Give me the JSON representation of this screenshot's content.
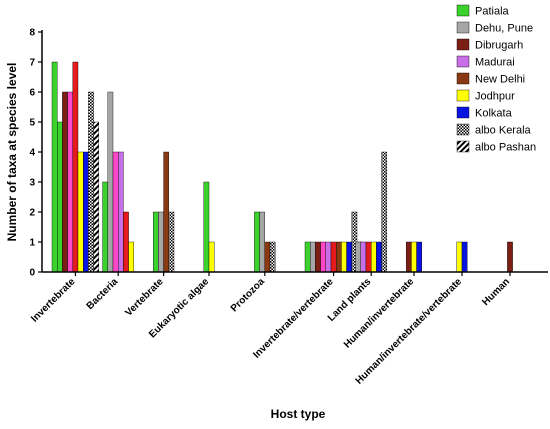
{
  "chart_data": {
    "type": "bar",
    "xlabel": "Host type",
    "ylabel": "Number of taxa at species level",
    "ylim": [
      0,
      8
    ],
    "yticks": [
      0,
      1,
      2,
      3,
      4,
      5,
      6,
      7,
      8
    ],
    "legend_position": "top-right",
    "categories": [
      "Invertebrate",
      "Bacteria",
      "Vertebrate",
      "Eukaryotic algae",
      "Protozoa",
      "Invertebrate/vertebrate",
      "Land plants",
      "Human/invertebrate",
      "Human/invertebrate/vertebrate",
      "Human"
    ],
    "series": [
      {
        "name": "Patiala",
        "color": "#3cd22d",
        "pattern": "solid",
        "values": [
          7,
          3,
          2,
          3,
          2,
          1,
          0,
          0,
          0,
          0
        ]
      },
      {
        "name": "",
        "color": "#3cd22d",
        "pattern": "solid",
        "values": [
          5,
          0,
          0,
          0,
          0,
          0,
          0,
          0,
          0,
          0
        ]
      },
      {
        "name": "Dehu, Pune",
        "color": "#a6a6a6",
        "pattern": "solid",
        "values": [
          0,
          6,
          2,
          0,
          2,
          1,
          1,
          0,
          0,
          0
        ]
      },
      {
        "name": "Dibrugarh",
        "color": "#7b1f14",
        "pattern": "solid",
        "values": [
          6,
          0,
          0,
          0,
          0,
          1,
          0,
          1,
          0,
          1
        ]
      },
      {
        "name": "",
        "color": "#ff47c8",
        "pattern": "solid",
        "values": [
          6,
          4,
          0,
          0,
          0,
          1,
          0,
          0,
          0,
          0
        ]
      },
      {
        "name": "Madurai",
        "color": "#c86ee6",
        "pattern": "solid",
        "values": [
          0,
          4,
          0,
          0,
          0,
          1,
          1,
          0,
          0,
          0
        ]
      },
      {
        "name": "",
        "color": "#e41a1c",
        "pattern": "solid",
        "values": [
          7,
          2,
          0,
          0,
          0,
          1,
          1,
          0,
          0,
          0
        ]
      },
      {
        "name": "New Delhi",
        "color": "#8a3a12",
        "pattern": "solid",
        "values": [
          0,
          0,
          4,
          0,
          1,
          1,
          0,
          0,
          0,
          0
        ]
      },
      {
        "name": "Jodhpur",
        "color": "#ffff00",
        "pattern": "solid",
        "values": [
          4,
          1,
          0,
          1,
          0,
          1,
          1,
          1,
          1,
          0
        ]
      },
      {
        "name": "Kolkata",
        "color": "#0a14e0",
        "pattern": "solid",
        "values": [
          4,
          0,
          0,
          0,
          0,
          1,
          1,
          1,
          1,
          0
        ]
      },
      {
        "name": "albo Kerala",
        "color": "#000000",
        "pattern": "checker",
        "values": [
          6,
          0,
          2,
          0,
          1,
          2,
          4,
          0,
          0,
          0
        ]
      },
      {
        "name": "albo Pashan",
        "color": "#000000",
        "pattern": "diagonal",
        "values": [
          5,
          0,
          0,
          0,
          0,
          1,
          0,
          0,
          0,
          0
        ]
      }
    ]
  }
}
